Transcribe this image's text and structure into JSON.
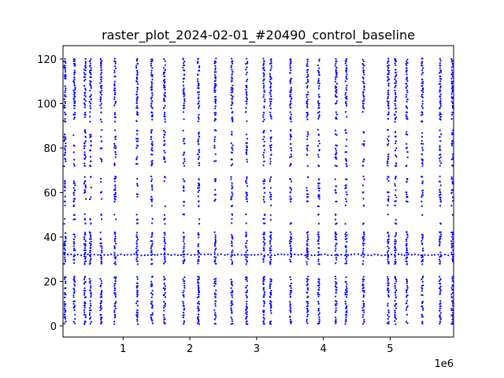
{
  "chart_data": {
    "type": "scatter",
    "title": "raster_plot_2024-02-01_#20490_control_baseline",
    "xlabel": "",
    "ylabel": "",
    "x_offset_label": "1e6",
    "xlim": [
      0.1,
      5.95
    ],
    "ylim": [
      -5,
      126
    ],
    "x_ticks": [
      1,
      2,
      3,
      4,
      5
    ],
    "x_tick_labels": [
      "1",
      "2",
      "3",
      "4",
      "5"
    ],
    "y_ticks": [
      0,
      20,
      40,
      60,
      80,
      100,
      120
    ],
    "y_tick_labels": [
      "0",
      "20",
      "40",
      "60",
      "80",
      "100",
      "120"
    ],
    "marker_color": "#0000ff",
    "grid": false,
    "units": "x axis in units of 1e6",
    "burst_times": [
      0.13,
      0.27,
      0.43,
      0.51,
      0.67,
      0.88,
      1.21,
      1.43,
      1.62,
      1.91,
      2.13,
      2.38,
      2.63,
      2.85,
      3.11,
      3.21,
      3.51,
      3.76,
      3.93,
      4.19,
      4.34,
      4.6,
      4.97,
      5.08,
      5.25,
      5.48,
      5.75,
      5.93
    ],
    "active_channels": [
      1,
      2,
      3,
      4,
      5,
      6,
      7,
      8,
      9,
      10,
      11,
      13,
      14,
      15,
      16,
      17,
      18,
      19,
      20,
      21,
      22,
      28,
      29,
      30,
      31,
      32,
      33,
      34,
      35,
      36,
      37,
      38,
      39,
      40,
      41,
      42,
      46,
      48,
      50,
      54,
      56,
      57,
      58,
      59,
      60,
      61,
      62,
      63,
      64,
      65,
      66,
      67,
      72,
      73,
      74,
      75,
      76,
      77,
      78,
      79,
      80,
      81,
      82,
      83,
      84,
      85,
      86,
      87,
      88,
      92,
      93,
      94,
      95,
      96,
      98,
      99,
      100,
      101,
      102,
      103,
      104,
      105,
      106,
      107,
      108,
      109,
      110,
      111,
      112,
      113,
      114,
      115,
      116,
      117,
      118,
      119,
      120
    ],
    "persistent_channel": 32,
    "persistent_channel_spacing": 0.05
  }
}
